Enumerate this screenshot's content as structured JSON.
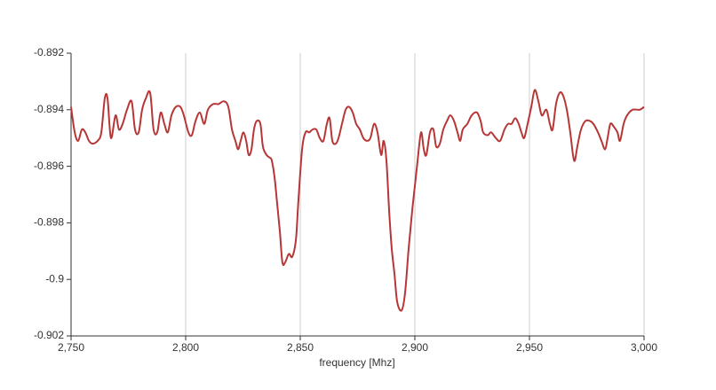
{
  "chart_data": {
    "type": "line",
    "x_label": "frequency [Mhz]",
    "x": [
      2750,
      2751.6,
      2753.1,
      2754.7,
      2756.2,
      2757.8,
      2759.3,
      2761.6,
      2763.2,
      2764.7,
      2765.9,
      2767.4,
      2769.4,
      2770.9,
      2772.5,
      2774.4,
      2776.4,
      2777.9,
      2779.5,
      2781,
      2782.6,
      2784.5,
      2786,
      2787.6,
      2789.1,
      2790.7,
      2792.2,
      2793.8,
      2795.7,
      2797.7,
      2799.2,
      2801.2,
      2802.7,
      2804.3,
      2806.2,
      2808.1,
      2809.7,
      2812,
      2814.3,
      2816.7,
      2818.6,
      2820.2,
      2821.7,
      2822.9,
      2824,
      2825.2,
      2826.4,
      2827.5,
      2828.7,
      2829.8,
      2831,
      2832.6,
      2833.7,
      2835.3,
      2836.8,
      2837.6,
      2838.8,
      2839.9,
      2841.1,
      2842.2,
      2843.4,
      2845,
      2846.5,
      2848.1,
      2849.2,
      2850.8,
      2852.3,
      2853.9,
      2855.4,
      2857,
      2858.5,
      2860.1,
      2861.6,
      2862.8,
      2864,
      2865.5,
      2866.7,
      2868.2,
      2869.8,
      2871.3,
      2872.9,
      2874.4,
      2876,
      2877.5,
      2879.1,
      2880.6,
      2882.2,
      2883.7,
      2885.3,
      2886.4,
      2887.6,
      2888.8,
      2889.9,
      2891.1,
      2892.3,
      2894.2,
      2895.7,
      2897.3,
      2898.8,
      2900,
      2901.2,
      2902.7,
      2903.9,
      2905,
      2906.6,
      2908.1,
      2909.3,
      2910.9,
      2912.4,
      2914,
      2915.5,
      2917.1,
      2918.6,
      2919.8,
      2920.9,
      2922.9,
      2924.8,
      2927.1,
      2928.7,
      2929.8,
      2931.8,
      2933.3,
      2935.3,
      2937.2,
      2939.1,
      2940.7,
      2942.2,
      2943.8,
      2945.3,
      2946.5,
      2947.7,
      2949.2,
      2950.8,
      2952.3,
      2953.9,
      2955.4,
      2957.4,
      2958.9,
      2960.1,
      2961.6,
      2963.2,
      2964.7,
      2966.3,
      2967.8,
      2969,
      2969.8,
      2970.9,
      2972.5,
      2974.4,
      2976.4,
      2977.9,
      2979.9,
      2981.4,
      2983,
      2984.1,
      2985.3,
      2986.8,
      2988.4,
      2989.5,
      2991.1,
      2992.6,
      2995,
      2998.1,
      3000
    ],
    "series": [
      {
        "color": "#b73636",
        "values": [
          -0.8939,
          -0.8948,
          -0.8951,
          -0.8947,
          -0.8948,
          -0.8951,
          -0.8952,
          -0.8951,
          -0.8948,
          -0.8936,
          -0.8936,
          -0.895,
          -0.8942,
          -0.8947,
          -0.8945,
          -0.894,
          -0.8937,
          -0.8947,
          -0.8948,
          -0.894,
          -0.8936,
          -0.8934,
          -0.8947,
          -0.8948,
          -0.8941,
          -0.8945,
          -0.8948,
          -0.8942,
          -0.8939,
          -0.8939,
          -0.8942,
          -0.8948,
          -0.8949,
          -0.8944,
          -0.8941,
          -0.8945,
          -0.894,
          -0.8938,
          -0.8938,
          -0.8937,
          -0.8939,
          -0.8947,
          -0.8951,
          -0.8954,
          -0.8951,
          -0.8948,
          -0.8951,
          -0.8956,
          -0.8954,
          -0.8947,
          -0.8944,
          -0.8945,
          -0.8953,
          -0.8956,
          -0.8957,
          -0.8958,
          -0.8964,
          -0.8973,
          -0.8983,
          -0.8994,
          -0.8994,
          -0.8991,
          -0.8992,
          -0.8986,
          -0.8972,
          -0.8954,
          -0.8948,
          -0.8948,
          -0.8947,
          -0.8947,
          -0.895,
          -0.8951,
          -0.8945,
          -0.8943,
          -0.8951,
          -0.8952,
          -0.895,
          -0.8945,
          -0.894,
          -0.8939,
          -0.8941,
          -0.8945,
          -0.8947,
          -0.895,
          -0.8951,
          -0.895,
          -0.8945,
          -0.8948,
          -0.8956,
          -0.8951,
          -0.8958,
          -0.8976,
          -0.8989,
          -0.8998,
          -0.9008,
          -0.9011,
          -0.9005,
          -0.8989,
          -0.8976,
          -0.8967,
          -0.8958,
          -0.8948,
          -0.8954,
          -0.8956,
          -0.8948,
          -0.8947,
          -0.8953,
          -0.8952,
          -0.8947,
          -0.8944,
          -0.8942,
          -0.8944,
          -0.8948,
          -0.8951,
          -0.8947,
          -0.8945,
          -0.8942,
          -0.8941,
          -0.8944,
          -0.8948,
          -0.8949,
          -0.8948,
          -0.895,
          -0.8951,
          -0.8947,
          -0.8945,
          -0.8945,
          -0.8943,
          -0.8945,
          -0.8948,
          -0.895,
          -0.8945,
          -0.8939,
          -0.8933,
          -0.8937,
          -0.8942,
          -0.894,
          -0.8945,
          -0.8947,
          -0.8938,
          -0.8934,
          -0.8935,
          -0.894,
          -0.8948,
          -0.8956,
          -0.8958,
          -0.8953,
          -0.8947,
          -0.8944,
          -0.8944,
          -0.8945,
          -0.8948,
          -0.8951,
          -0.8954,
          -0.895,
          -0.8945,
          -0.8946,
          -0.8948,
          -0.8951,
          -0.8945,
          -0.8942,
          -0.894,
          -0.894,
          -0.8939
        ]
      }
    ],
    "xlim": [
      2750,
      3000
    ],
    "xticks": [
      {
        "value": 2750,
        "label": "2,750"
      },
      {
        "value": 2800,
        "label": "2,800"
      },
      {
        "value": 2850,
        "label": "2,850"
      },
      {
        "value": 2900,
        "label": "2,900"
      },
      {
        "value": 2950,
        "label": "2,950"
      },
      {
        "value": 3000,
        "label": "3,000"
      }
    ],
    "ylim": [
      -0.902,
      -0.892
    ],
    "yticks": [
      -0.892,
      -0.894,
      -0.896,
      -0.898,
      -0.9,
      -0.902
    ],
    "grid": "x"
  }
}
